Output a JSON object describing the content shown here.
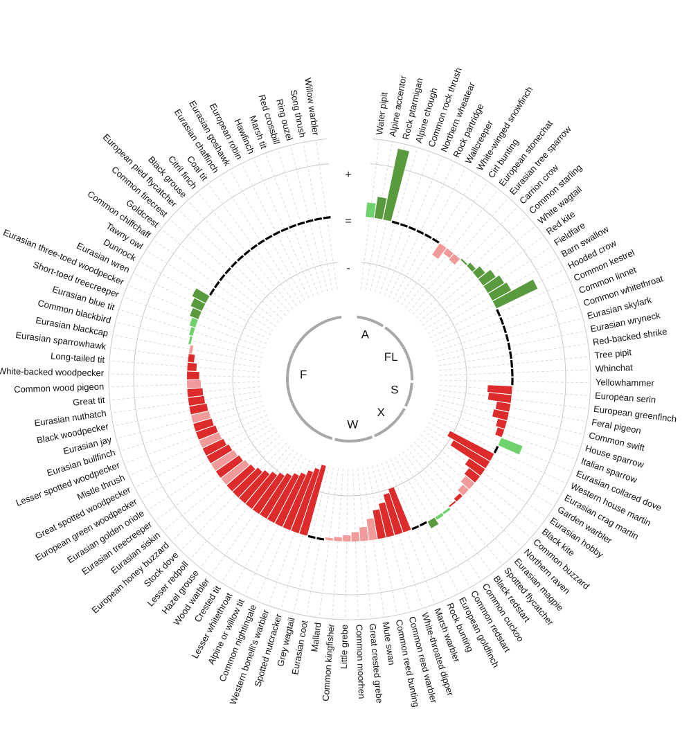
{
  "chart_data": {
    "type": "bar",
    "subtype": "circular",
    "band_labels": {
      "increase": "+",
      "stable": "=",
      "decline": "-"
    },
    "colors": {
      "strong_increase": "#5a9a3e",
      "moderate_increase": "#6fd16c",
      "moderate_decline": "#f09a9a",
      "strong_decline": "#dd2a2a",
      "stable": "#000000",
      "habitat_arc": "#a8a8a8",
      "grid": "#c8c8c8",
      "spoke": "#d4d4d4"
    },
    "value_range": [
      -1,
      1
    ],
    "groups": [
      {
        "label": "A",
        "species": [
          {
            "name": "Water pipit",
            "value": 0.19,
            "category": "moderate_increase"
          },
          {
            "name": "Alpine accentor",
            "value": 0.28,
            "category": "strong_increase"
          },
          {
            "name": "Rock ptarmigan",
            "value": 0.95,
            "category": "strong_increase"
          },
          {
            "name": "Alpine chough",
            "value": 0,
            "category": "stable"
          },
          {
            "name": "Common rock thrush",
            "value": 0,
            "category": "stable"
          },
          {
            "name": "Northern wheatear",
            "value": 0,
            "category": "stable"
          },
          {
            "name": "Rock partridge",
            "value": 0,
            "category": "stable"
          },
          {
            "name": "Wallcreeper",
            "value": 0,
            "category": "stable"
          },
          {
            "name": "White-winged snowfinch",
            "value": 0,
            "category": "stable"
          }
        ]
      },
      {
        "label": "FL",
        "species": [
          {
            "name": "Cirl bunting",
            "value": -0.18,
            "category": "moderate_decline"
          },
          {
            "name": "European stonechat",
            "value": -0.08,
            "category": "moderate_decline"
          },
          {
            "name": "Eurasian tree sparrow",
            "value": -0.1,
            "category": "moderate_decline"
          },
          {
            "name": "Carrion crow",
            "value": 0.02,
            "category": "strong_increase"
          },
          {
            "name": "Common starling",
            "value": 0.06,
            "category": "strong_increase"
          },
          {
            "name": "White wagtail",
            "value": 0.12,
            "category": "strong_increase"
          },
          {
            "name": "Red kite",
            "value": 0.2,
            "category": "strong_increase"
          },
          {
            "name": "Fieldfare",
            "value": 0.25,
            "category": "strong_increase"
          },
          {
            "name": "Barn swallow",
            "value": 0.28,
            "category": "strong_increase"
          },
          {
            "name": "Hooded crow",
            "value": 0.6,
            "category": "strong_increase"
          },
          {
            "name": "Common kestrel",
            "value": 0,
            "category": "stable"
          },
          {
            "name": "Common linnet",
            "value": 0,
            "category": "stable"
          },
          {
            "name": "Common whitethroat",
            "value": 0,
            "category": "stable"
          },
          {
            "name": "Eurasian skylark",
            "value": 0,
            "category": "stable"
          },
          {
            "name": "Eurasian wryneck",
            "value": 0,
            "category": "stable"
          },
          {
            "name": "Red-backed shrike",
            "value": 0,
            "category": "stable"
          },
          {
            "name": "Tree pipit",
            "value": 0,
            "category": "stable"
          },
          {
            "name": "Whinchat",
            "value": 0,
            "category": "stable"
          },
          {
            "name": "Yellowhammer",
            "value": 0,
            "category": "stable"
          }
        ]
      },
      {
        "label": "S",
        "species": [
          {
            "name": "European serin",
            "value": -0.32,
            "category": "strong_decline"
          },
          {
            "name": "European greenfinch",
            "value": -0.3,
            "category": "strong_decline"
          },
          {
            "name": "Feral pigeon",
            "value": -0.18,
            "category": "strong_decline"
          },
          {
            "name": "Common swift",
            "value": -0.2,
            "category": "strong_decline"
          },
          {
            "name": "House sparrow",
            "value": -0.12,
            "category": "strong_decline"
          },
          {
            "name": "Italian sparrow",
            "value": -0.09,
            "category": "strong_decline"
          },
          {
            "name": "Eurasian collared dove",
            "value": 0.3,
            "category": "moderate_increase"
          },
          {
            "name": "Western house martin",
            "value": 0,
            "category": "stable"
          }
        ]
      },
      {
        "label": "X",
        "species": [
          {
            "name": "Eurasian crag martin",
            "value": -0.65,
            "category": "strong_decline"
          },
          {
            "name": "Garden warbler",
            "value": -0.55,
            "category": "strong_decline"
          },
          {
            "name": "Eurasian hobby",
            "value": -0.25,
            "category": "strong_decline"
          },
          {
            "name": "Black kite",
            "value": -0.18,
            "category": "strong_decline"
          },
          {
            "name": "Common buzzard",
            "value": -0.15,
            "category": "moderate_decline"
          },
          {
            "name": "Northern raven",
            "value": -0.1,
            "category": "moderate_decline"
          },
          {
            "name": "Eurasian magpie",
            "value": -0.05,
            "category": "strong_decline"
          },
          {
            "name": "Spotted flycatcher",
            "value": -0.02,
            "category": "strong_decline"
          },
          {
            "name": "Black redstart",
            "value": 0.03,
            "category": "moderate_increase"
          },
          {
            "name": "Common cuckoo",
            "value": 0.04,
            "category": "moderate_increase"
          },
          {
            "name": "Common redstart",
            "value": 0.1,
            "category": "strong_increase"
          },
          {
            "name": "European goldfinch",
            "value": 0,
            "category": "stable"
          },
          {
            "name": "Rock bunting",
            "value": 0,
            "category": "stable"
          }
        ]
      },
      {
        "label": "W",
        "species": [
          {
            "name": "Marsh warbler",
            "value": -0.6,
            "category": "strong_decline"
          },
          {
            "name": "White-throated dipper",
            "value": -0.55,
            "category": "strong_decline"
          },
          {
            "name": "Common reed warbler",
            "value": -0.45,
            "category": "strong_decline"
          },
          {
            "name": "Common reed bunting",
            "value": -0.38,
            "category": "strong_decline"
          },
          {
            "name": "Mute swan",
            "value": -0.28,
            "category": "moderate_decline"
          },
          {
            "name": "Great crested grebe",
            "value": -0.18,
            "category": "moderate_decline"
          },
          {
            "name": "Common moorhen",
            "value": -0.12,
            "category": "moderate_decline"
          },
          {
            "name": "Little grebe",
            "value": -0.08,
            "category": "moderate_decline"
          },
          {
            "name": "Common kingfisher",
            "value": -0.05,
            "category": "moderate_decline"
          },
          {
            "name": "Mallard",
            "value": -0.03,
            "category": "moderate_decline"
          },
          {
            "name": "Eurasian coot",
            "value": 0,
            "category": "stable"
          },
          {
            "name": "Grey wagtail",
            "value": 0,
            "category": "stable"
          }
        ]
      },
      {
        "label": "F",
        "species": [
          {
            "name": "Spotted nutcracker",
            "value": -0.95,
            "category": "strong_decline"
          },
          {
            "name": "Western bonelli's warbler",
            "value": -0.88,
            "category": "strong_decline"
          },
          {
            "name": "Common nightingale",
            "value": -0.82,
            "category": "strong_decline"
          },
          {
            "name": "Alpine or willow tit",
            "value": -0.75,
            "category": "strong_decline"
          },
          {
            "name": "Lesser whitethroat",
            "value": -0.7,
            "category": "strong_decline"
          },
          {
            "name": "Crested tit",
            "value": -0.65,
            "category": "strong_decline"
          },
          {
            "name": "Wood warbler",
            "value": -0.6,
            "category": "strong_decline"
          },
          {
            "name": "Hazel grouse",
            "value": -0.55,
            "category": "strong_decline"
          },
          {
            "name": "Lesser redpoll",
            "value": -0.5,
            "category": "strong_decline"
          },
          {
            "name": "Stock dove",
            "value": -0.46,
            "category": "strong_decline"
          },
          {
            "name": "European honey buzzard",
            "value": -0.42,
            "category": "strong_decline"
          },
          {
            "name": "Eurasian siskin",
            "value": -0.4,
            "category": "moderate_decline"
          },
          {
            "name": "Eurasian treecreeper",
            "value": -0.37,
            "category": "strong_decline"
          },
          {
            "name": "Eurasian golden oriole",
            "value": -0.35,
            "category": "moderate_decline"
          },
          {
            "name": "European green woodpecker",
            "value": -0.33,
            "category": "strong_decline"
          },
          {
            "name": "Great spotted woodpecker",
            "value": -0.3,
            "category": "strong_decline"
          },
          {
            "name": "Mistle thrush",
            "value": -0.28,
            "category": "moderate_decline"
          },
          {
            "name": "Lesser spotted woodpecker",
            "value": -0.27,
            "category": "strong_decline"
          },
          {
            "name": "Eurasian bullfinch",
            "value": -0.25,
            "category": "strong_decline"
          },
          {
            "name": "Eurasian jay",
            "value": -0.24,
            "category": "moderate_decline"
          },
          {
            "name": "Black woodpecker",
            "value": -0.23,
            "category": "strong_decline"
          },
          {
            "name": "Eurasian nuthatch",
            "value": -0.21,
            "category": "strong_decline"
          },
          {
            "name": "Great tit",
            "value": -0.2,
            "category": "strong_decline"
          },
          {
            "name": "Common wood pigeon",
            "value": -0.18,
            "category": "moderate_decline"
          },
          {
            "name": "White-backed woodpecker",
            "value": -0.16,
            "category": "strong_decline"
          },
          {
            "name": "Long-tailed tit",
            "value": -0.12,
            "category": "strong_decline"
          },
          {
            "name": "Eurasian sparrowhawk",
            "value": -0.08,
            "category": "strong_decline"
          },
          {
            "name": "Eurasian blackcap",
            "value": -0.04,
            "category": "moderate_decline"
          },
          {
            "name": "Common blackbird",
            "value": 0.03,
            "category": "moderate_increase"
          },
          {
            "name": "Eurasian blue tit",
            "value": 0.05,
            "category": "moderate_increase"
          },
          {
            "name": "Short-toed treecreeper",
            "value": 0.08,
            "category": "moderate_increase"
          },
          {
            "name": "Eurasian three-toed woodpecker",
            "value": 0.12,
            "category": "strong_increase"
          },
          {
            "name": "Eurasian wren",
            "value": 0.16,
            "category": "strong_increase"
          },
          {
            "name": "Dunnock",
            "value": 0.2,
            "category": "strong_increase"
          },
          {
            "name": "Tawny owl",
            "value": 0,
            "category": "stable"
          },
          {
            "name": "Common chiffchaff",
            "value": 0,
            "category": "stable"
          },
          {
            "name": "Goldcrest",
            "value": 0,
            "category": "stable"
          },
          {
            "name": "Common firecrest",
            "value": 0,
            "category": "stable"
          },
          {
            "name": "European pied flycatcher",
            "value": 0,
            "category": "stable"
          },
          {
            "name": "Black grouse",
            "value": 0,
            "category": "stable"
          },
          {
            "name": "Citril finch",
            "value": 0,
            "category": "stable"
          },
          {
            "name": "Coal tit",
            "value": 0,
            "category": "stable"
          },
          {
            "name": "Eurasian chaffinch",
            "value": 0,
            "category": "stable"
          },
          {
            "name": "Eurasian goshawk",
            "value": 0,
            "category": "stable"
          },
          {
            "name": "European robin",
            "value": 0,
            "category": "stable"
          },
          {
            "name": "Hawfinch",
            "value": 0,
            "category": "stable"
          },
          {
            "name": "Marsh tit",
            "value": 0,
            "category": "stable"
          },
          {
            "name": "Red crossbill",
            "value": 0,
            "category": "stable"
          },
          {
            "name": "Ring ouzel",
            "value": 0,
            "category": "stable"
          },
          {
            "name": "Song thrush",
            "value": 0,
            "category": "stable"
          },
          {
            "name": "Willow warbler",
            "value": 0,
            "category": "stable"
          }
        ]
      }
    ]
  }
}
